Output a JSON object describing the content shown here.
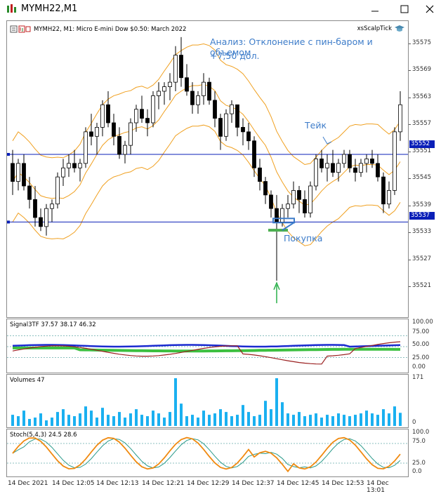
{
  "window": {
    "title": "MYMH22,M1"
  },
  "chart_header": {
    "symbol_line": "MYMH22, M1:  Micro E-mini Dow $0.50: March 2022",
    "indicator_name": "xsScalpTick"
  },
  "annotations": {
    "analysis_line1": "Анализ: Отклонение с пин-баром и объемом",
    "analysis_line2": "+7,50 дол.",
    "take_label": "Тейк",
    "buy_label": "Покупка"
  },
  "price_scale": [
    "35575",
    "35569",
    "35563",
    "35557",
    "35551",
    "35545",
    "35539",
    "35533",
    "35527",
    "35521"
  ],
  "price_lines": {
    "upper": "35552",
    "lower": "35537",
    "line_color": "#0a1fb8"
  },
  "signal_pane": {
    "label": "Signal3TF 37.57 38.17 46.32",
    "scale": [
      "100.00",
      "75.00",
      "50.00",
      "25.00",
      "0.00"
    ]
  },
  "volume_pane": {
    "label": "Volumes 47",
    "scale": [
      "171",
      "0"
    ]
  },
  "stoch_pane": {
    "label": "Stoch(5,4,3) 24.5 28.6",
    "scale": [
      "100.0",
      "75.0",
      "25.0",
      "0.0"
    ]
  },
  "time_axis": [
    "14 Dec 2021",
    "14 Dec 12:05",
    "14 Dec 12:13",
    "14 Dec 12:21",
    "14 Dec 12:29",
    "14 Dec 12:37",
    "14 Dec 12:45",
    "14 Dec 12:53",
    "14 Dec 13:01"
  ],
  "colors": {
    "band": "#f0a020",
    "volume": "#1ab0f0",
    "stoch_main": "#f08a10",
    "stoch_signal": "#2a9a8a",
    "signal_blue": "#1a2ad0",
    "signal_green": "#3cc040",
    "signal_red": "#9a1f1f",
    "annotation": "#3d7cc9"
  },
  "chart_data": {
    "type": "candlestick",
    "ylim": [
      35517,
      35580
    ],
    "candles": [
      [
        35550,
        35553,
        35543,
        35546
      ],
      [
        35546,
        35551,
        35544,
        35550
      ],
      [
        35550,
        35552,
        35544,
        35545
      ],
      [
        35545,
        35547,
        35540,
        35542
      ],
      [
        35542,
        35545,
        35536,
        35538
      ],
      [
        35538,
        35540,
        35535,
        35536
      ],
      [
        35536,
        35541,
        35534,
        35540
      ],
      [
        35540,
        35542,
        35537,
        35541
      ],
      [
        35541,
        35548,
        35540,
        35547
      ],
      [
        35547,
        35551,
        35545,
        35549
      ],
      [
        35549,
        35552,
        35547,
        35550
      ],
      [
        35550,
        35553,
        35548,
        35549
      ],
      [
        35549,
        35551,
        35546,
        35550
      ],
      [
        35550,
        35558,
        35549,
        35557
      ],
      [
        35557,
        35561,
        35554,
        35556
      ],
      [
        35556,
        35559,
        35552,
        35558
      ],
      [
        35558,
        35564,
        35556,
        35563
      ],
      [
        35563,
        35566,
        35558,
        35559
      ],
      [
        35559,
        35561,
        35554,
        35556
      ],
      [
        35556,
        35558,
        35551,
        35552
      ],
      [
        35552,
        35555,
        35550,
        35554
      ],
      [
        35554,
        35560,
        35552,
        35559
      ],
      [
        35559,
        35563,
        35557,
        35562
      ],
      [
        35562,
        35565,
        35559,
        35560
      ],
      [
        35560,
        35562,
        35556,
        35559
      ],
      [
        35559,
        35566,
        35558,
        35565
      ],
      [
        35565,
        35568,
        35562,
        35566
      ],
      [
        35566,
        35568,
        35563,
        35567
      ],
      [
        35567,
        35570,
        35564,
        35568
      ],
      [
        35568,
        35576,
        35566,
        35574
      ],
      [
        35574,
        35578,
        35567,
        35569
      ],
      [
        35569,
        35572,
        35565,
        35566
      ],
      [
        35566,
        35568,
        35561,
        35563
      ],
      [
        35563,
        35566,
        35561,
        35565
      ],
      [
        35565,
        35570,
        35563,
        35568
      ],
      [
        35568,
        35569,
        35563,
        35564
      ],
      [
        35564,
        35566,
        35558,
        35560
      ],
      [
        35560,
        35561,
        35553,
        35556
      ],
      [
        35556,
        35562,
        35555,
        35561
      ],
      [
        35561,
        35564,
        35559,
        35563
      ],
      [
        35563,
        35563,
        35556,
        35558
      ],
      [
        35558,
        35560,
        35554,
        35557
      ],
      [
        35557,
        35559,
        35553,
        35555
      ],
      [
        35555,
        35556,
        35547,
        35549
      ],
      [
        35549,
        35551,
        35544,
        35546
      ],
      [
        35546,
        35547,
        35541,
        35543
      ],
      [
        35543,
        35544,
        35538,
        35540
      ],
      [
        35540,
        35543,
        35524,
        35537
      ],
      [
        35537,
        35541,
        35536,
        35540
      ],
      [
        35540,
        35543,
        35538,
        35541
      ],
      [
        35541,
        35546,
        35540,
        35544
      ],
      [
        35544,
        35545,
        35539,
        35542
      ],
      [
        35542,
        35544,
        35538,
        35539
      ],
      [
        35539,
        35546,
        35538,
        35545
      ],
      [
        35545,
        35552,
        35544,
        35551
      ],
      [
        35551,
        35553,
        35548,
        35549
      ],
      [
        35549,
        35552,
        35546,
        35550
      ],
      [
        35550,
        35553,
        35547,
        35548
      ],
      [
        35548,
        35551,
        35546,
        35550
      ],
      [
        35550,
        35553,
        35549,
        35552
      ],
      [
        35552,
        35553,
        35548,
        35549
      ],
      [
        35549,
        35551,
        35546,
        35548
      ],
      [
        35548,
        35551,
        35547,
        35550
      ],
      [
        35550,
        35552,
        35548,
        35551
      ],
      [
        35551,
        35553,
        35549,
        35550
      ],
      [
        35550,
        35552,
        35546,
        35547
      ],
      [
        35547,
        35548,
        35539,
        35541
      ],
      [
        35541,
        35546,
        35540,
        35544
      ],
      [
        35544,
        35558,
        35543,
        35557
      ],
      [
        35557,
        35566,
        35555,
        35563
      ]
    ],
    "volumes": [
      40,
      35,
      55,
      25,
      30,
      45,
      20,
      30,
      50,
      60,
      40,
      35,
      45,
      70,
      55,
      30,
      65,
      40,
      35,
      50,
      30,
      45,
      60,
      40,
      35,
      55,
      45,
      30,
      50,
      171,
      80,
      35,
      40,
      30,
      55,
      40,
      45,
      60,
      50,
      35,
      40,
      75,
      50,
      35,
      40,
      90,
      60,
      171,
      85,
      45,
      40,
      50,
      35,
      40,
      45,
      30,
      40,
      35,
      45,
      40,
      35,
      40,
      45,
      55,
      45,
      40,
      60,
      45,
      70,
      47
    ]
  }
}
